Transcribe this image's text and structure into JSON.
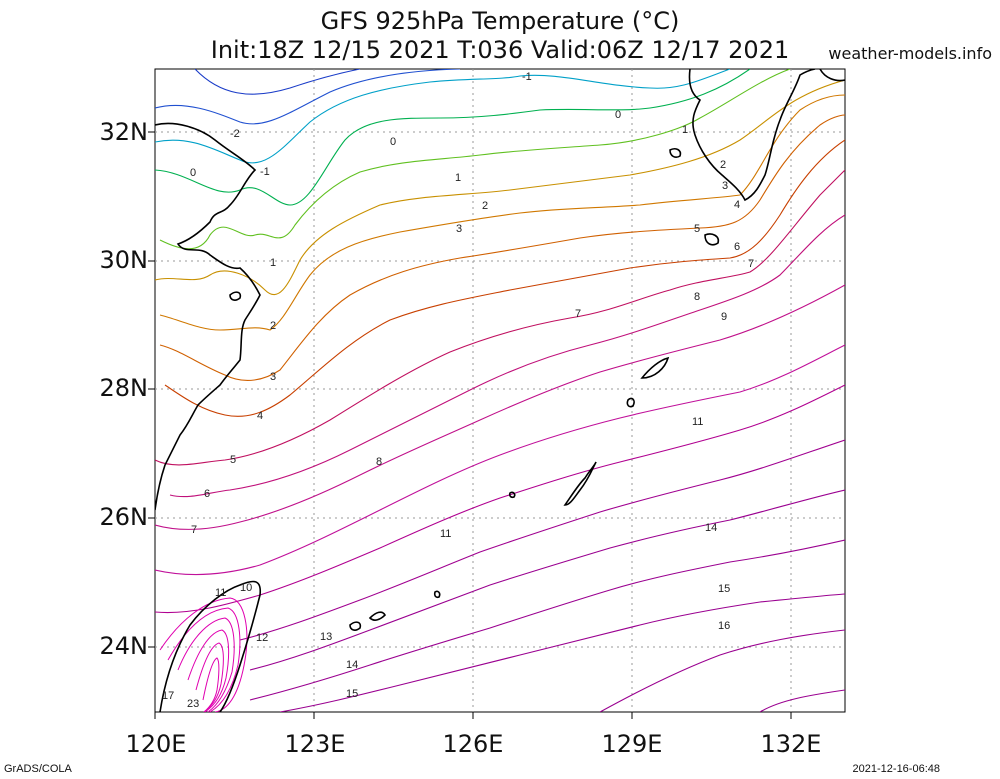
{
  "title_line1": "GFS 925hPa Temperature (°C)",
  "title_line2": "Init:18Z 12/15 2021 T:036 Valid:06Z 12/17 2021",
  "site": "weather-models.info",
  "footer_left": "GrADS/COLA",
  "footer_right": "2021-12-16-06:48",
  "axes": {
    "lat_labels": [
      "32N",
      "30N",
      "28N",
      "26N",
      "24N"
    ],
    "lon_labels": [
      "120E",
      "123E",
      "126E",
      "129E",
      "132E"
    ],
    "lon_range": [
      120,
      133
    ],
    "lat_range": [
      23,
      33
    ]
  },
  "contour_labels": [
    "-2",
    "-1",
    "0",
    "1",
    "2",
    "3",
    "4",
    "5",
    "6",
    "7",
    "8",
    "9",
    "10",
    "11",
    "12",
    "13",
    "14",
    "15",
    "16",
    "17",
    "23"
  ],
  "colors": {
    "cold": "#1a40c0",
    "cool": "#00a0c8",
    "mild": "#00b060",
    "warm": "#c08000",
    "hot": "#c0007a",
    "hottest": "#e000b0",
    "coast": "#000000"
  }
}
